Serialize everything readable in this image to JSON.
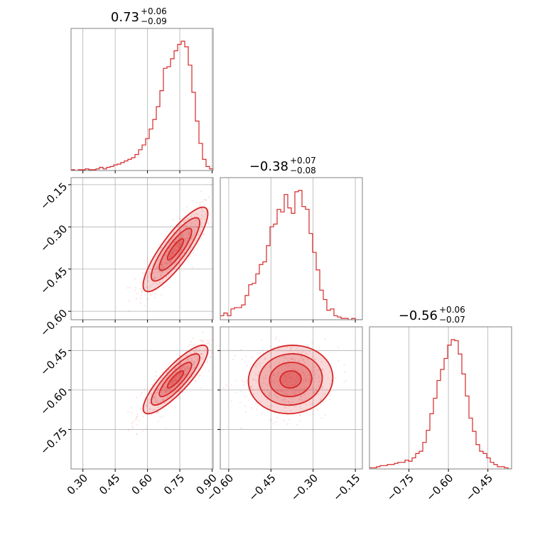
{
  "chart_data": {
    "type": "corner",
    "color": "#d62728",
    "params": [
      {
        "name": "",
        "median": 0.73,
        "plus": 0.06,
        "minus": 0.09,
        "range": [
          0.245,
          0.905
        ],
        "ticks": [
          0.3,
          0.45,
          0.6,
          0.75,
          0.9
        ],
        "tick_labels": [
          "0.30",
          "0.45",
          "0.60",
          "0.75",
          "0.90"
        ],
        "title_main": "0.73",
        "title_plus": "+0.06",
        "title_minus": "−0.09"
      },
      {
        "name": "",
        "median": -0.38,
        "plus": 0.07,
        "minus": 0.08,
        "range": [
          -0.63,
          -0.125
        ],
        "ticks": [
          -0.6,
          -0.45,
          -0.3,
          -0.15
        ],
        "tick_labels": [
          "−0.60",
          "−0.45",
          "−0.30",
          "−0.15"
        ],
        "title_main": "−0.38",
        "title_plus": "+0.07",
        "title_minus": "−0.08"
      },
      {
        "name": "",
        "median": -0.56,
        "plus": 0.06,
        "minus": 0.07,
        "range": [
          -0.9,
          -0.36
        ],
        "ticks": [
          -0.75,
          -0.6,
          -0.45
        ],
        "tick_labels": [
          "−0.75",
          "−0.60",
          "−0.45"
        ],
        "title_main": "−0.56",
        "title_plus": "+0.06",
        "title_minus": "−0.07"
      }
    ],
    "histograms": [
      {
        "edges_range": [
          0.245,
          0.905
        ],
        "counts": [
          1,
          0,
          1,
          1,
          2,
          1,
          1,
          2,
          4,
          2,
          4,
          5,
          7,
          8,
          10,
          12,
          14,
          16,
          20,
          26,
          32,
          40,
          52,
          64,
          80,
          100,
          128,
          130,
          140,
          150,
          158,
          162,
          155,
          132,
          98,
          62,
          34,
          14,
          5,
          2
        ]
      },
      {
        "edges_range": [
          -0.63,
          -0.125
        ],
        "counts": [
          3,
          5,
          3,
          8,
          9,
          9,
          11,
          18,
          26,
          27,
          34,
          41,
          43,
          55,
          69,
          71,
          82,
          80,
          93,
          83,
          79,
          95,
          96,
          84,
          82,
          64,
          50,
          37,
          22,
          15,
          7,
          8,
          3,
          2,
          1,
          1,
          0,
          1,
          0,
          0
        ]
      },
      {
        "edges_range": [
          -0.9,
          -0.36
        ],
        "counts": [
          1,
          1,
          2,
          3,
          3,
          4,
          4,
          5,
          6,
          6,
          8,
          7,
          10,
          14,
          16,
          24,
          35,
          50,
          64,
          80,
          90,
          100,
          112,
          117,
          116,
          104,
          86,
          66,
          46,
          34,
          22,
          16,
          14,
          10,
          6,
          4,
          2,
          2,
          1,
          0
        ]
      }
    ],
    "grid": true,
    "legend": "none"
  }
}
